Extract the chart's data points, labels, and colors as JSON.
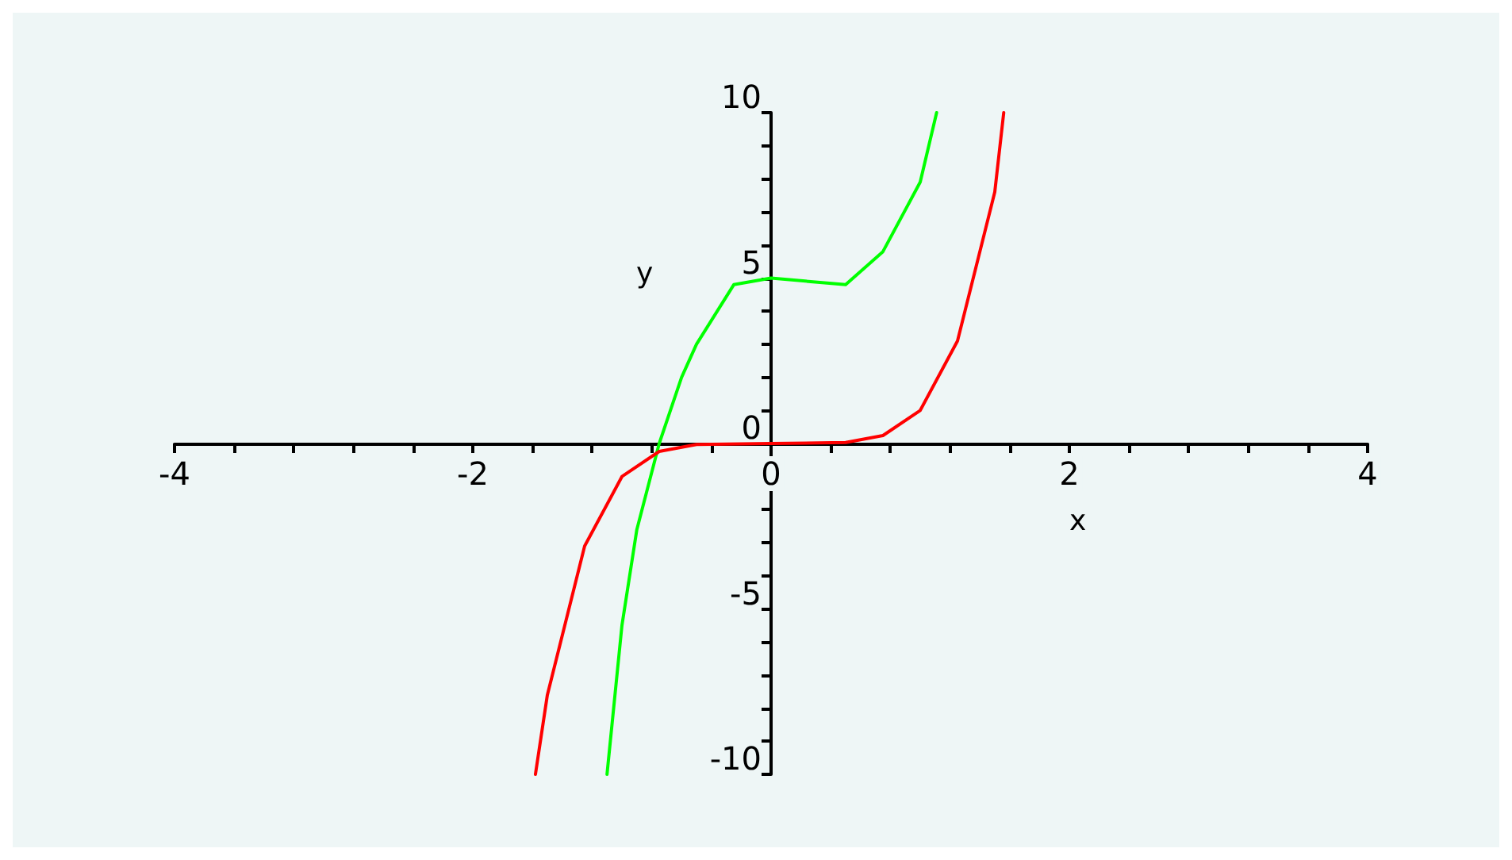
{
  "chart_data": {
    "type": "line",
    "xlabel": "x",
    "ylabel": "y",
    "xlim": [
      -4,
      4
    ],
    "ylim": [
      -10,
      10
    ],
    "xticks": [
      -4,
      {
        "value": -3.6,
        "label": null
      },
      {
        "value": -3.2,
        "label": null
      },
      {
        "value": -2.8,
        "label": null
      },
      {
        "value": -2.4,
        "label": null
      },
      -2,
      {
        "value": -1.6,
        "label": null
      },
      {
        "value": -1.2,
        "label": null
      },
      {
        "value": -0.8,
        "label": null
      },
      {
        "value": -0.4,
        "label": null
      },
      0,
      {
        "value": 0.4,
        "label": null
      },
      {
        "value": 0.8,
        "label": null
      },
      {
        "value": 1.2,
        "label": null
      },
      {
        "value": 1.6,
        "label": null
      },
      2,
      {
        "value": 2.4,
        "label": null
      },
      {
        "value": 2.8,
        "label": null
      },
      {
        "value": 3.2,
        "label": null
      },
      {
        "value": 3.6,
        "label": null
      },
      4
    ],
    "yticks": [
      -10,
      {
        "value": -9,
        "label": null
      },
      {
        "value": -8,
        "label": null
      },
      {
        "value": -7,
        "label": null
      },
      {
        "value": -6,
        "label": null
      },
      -5,
      {
        "value": -4,
        "label": null
      },
      {
        "value": -3,
        "label": null
      },
      {
        "value": -2,
        "label": null
      },
      {
        "value": -1,
        "label": null
      },
      0,
      {
        "value": 1,
        "label": null
      },
      {
        "value": 2,
        "label": null
      },
      {
        "value": 3,
        "label": null
      },
      {
        "value": 4,
        "label": null
      },
      5,
      {
        "value": 6,
        "label": null
      },
      {
        "value": 7,
        "label": null
      },
      {
        "value": 8,
        "label": null
      },
      {
        "value": 9,
        "label": null
      },
      10
    ],
    "marker": "none",
    "line_style": "solid",
    "series": [
      {
        "color": "#00ff00",
        "x": [
          -1.1,
          -1.0,
          -0.9,
          -0.75,
          -0.6,
          -0.5,
          -0.25,
          0,
          0.25,
          0.5,
          0.75,
          1.0,
          1.11
        ],
        "values": [
          -10,
          -5.5,
          -2.6,
          0,
          2.0,
          3.0,
          4.8,
          5,
          4.9,
          4.8,
          5.8,
          7.9,
          10
        ]
      },
      {
        "color": "#ff0000",
        "x": [
          -1.58,
          -1.5,
          -1.25,
          -1.0,
          -0.75,
          -0.5,
          0,
          0.5,
          0.75,
          1.0,
          1.25,
          1.5,
          1.56
        ],
        "values": [
          -10,
          -7.6,
          -3.1,
          -1,
          -0.24,
          -0.03,
          0,
          0.03,
          0.24,
          1,
          3.1,
          7.6,
          10
        ]
      }
    ]
  }
}
